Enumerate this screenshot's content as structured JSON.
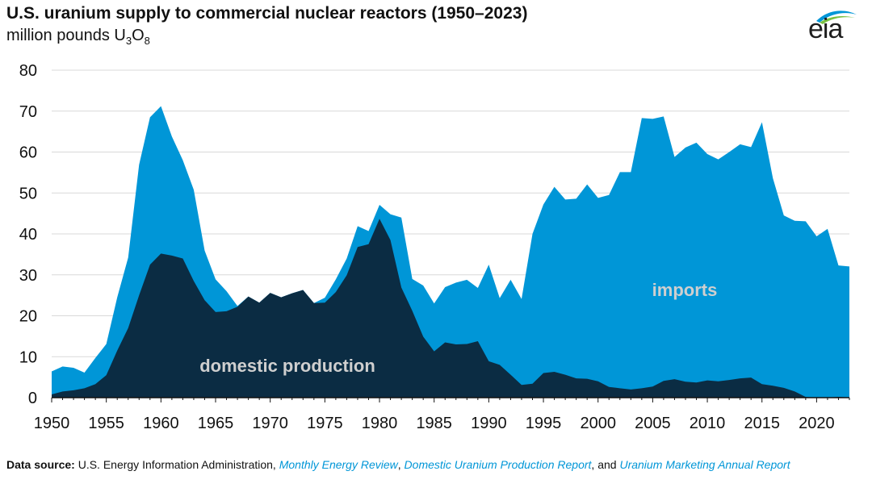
{
  "title": "U.S. uranium supply to commercial nuclear reactors (1950–2023)",
  "subtitle_prefix": "million pounds U",
  "subtitle_sub1": "3",
  "subtitle_mid": "O",
  "subtitle_sub2": "8",
  "logo": {
    "text": "eia",
    "icon": "eia-logo-icon"
  },
  "colors": {
    "domestic": "#0b2c43",
    "imports": "#0096d7",
    "grid": "#d9d9d9",
    "imports_label": "#cfcfcf",
    "domestic_label": "#cfcfcf"
  },
  "source": {
    "label": "Data source:",
    "text1": " U.S. Energy Information Administration, ",
    "link1": "Monthly Energy Review",
    "text2": ", ",
    "link2": "Domestic Uranium Production Report",
    "text3": ", and ",
    "link3": "Uranium Marketing Annual Report"
  },
  "chart_data": {
    "type": "area",
    "stacked": true,
    "title": "U.S. uranium supply to commercial nuclear reactors (1950–2023)",
    "ylabel": "million pounds U3O8",
    "xlim": [
      1950,
      2023
    ],
    "ylim": [
      0,
      80
    ],
    "yticks": [
      0,
      10,
      20,
      30,
      40,
      50,
      60,
      70,
      80
    ],
    "xticks": [
      1950,
      1955,
      1960,
      1965,
      1970,
      1975,
      1980,
      1985,
      1990,
      1995,
      2000,
      2005,
      2010,
      2015,
      2020
    ],
    "grid": true,
    "x": [
      1950,
      1951,
      1952,
      1953,
      1954,
      1955,
      1956,
      1957,
      1958,
      1959,
      1960,
      1961,
      1962,
      1963,
      1964,
      1965,
      1966,
      1967,
      1968,
      1969,
      1970,
      1971,
      1972,
      1973,
      1974,
      1975,
      1976,
      1977,
      1978,
      1979,
      1980,
      1981,
      1982,
      1983,
      1984,
      1985,
      1986,
      1987,
      1988,
      1989,
      1990,
      1991,
      1992,
      1993,
      1994,
      1995,
      1996,
      1997,
      1998,
      1999,
      2000,
      2001,
      2002,
      2003,
      2004,
      2005,
      2006,
      2007,
      2008,
      2009,
      2010,
      2011,
      2012,
      2013,
      2014,
      2015,
      2016,
      2017,
      2018,
      2019,
      2020,
      2021,
      2022,
      2023
    ],
    "series": [
      {
        "name": "domestic production",
        "values": [
          0.8,
          1.5,
          1.8,
          2.3,
          3.3,
          5.5,
          11.5,
          17,
          25,
          32.5,
          35.2,
          34.7,
          34,
          28.5,
          23.8,
          20.9,
          21.1,
          22.2,
          24.7,
          23.2,
          25.6,
          24.5,
          25.5,
          26.3,
          23.1,
          23.2,
          25.8,
          29.9,
          36.8,
          37.5,
          43.7,
          38.5,
          26.9,
          21.2,
          14.9,
          11.3,
          13.5,
          13,
          13.1,
          13.8,
          8.9,
          8,
          5.6,
          3.1,
          3.4,
          6.0,
          6.3,
          5.6,
          4.7,
          4.6,
          4,
          2.6,
          2.3,
          2.0,
          2.3,
          2.7,
          4.1,
          4.5,
          3.9,
          3.7,
          4.2,
          4.0,
          4.3,
          4.7,
          4.9,
          3.3,
          2.9,
          2.4,
          1.5,
          0.17,
          0.02,
          0.02,
          0.2,
          0.05
        ]
      },
      {
        "name": "imports",
        "values": [
          5.6,
          6.1,
          5.5,
          3.8,
          6.4,
          7.6,
          13,
          17.2,
          31.9,
          36,
          36,
          29.1,
          24,
          22.3,
          12.1,
          8,
          4.9,
          0.2,
          0,
          0,
          0,
          0,
          0,
          0,
          0,
          1.2,
          3.1,
          4.1,
          5.1,
          3.2,
          3.4,
          6.3,
          17.1,
          7.8,
          12.5,
          11.7,
          13.5,
          15.1,
          15.7,
          13,
          23.6,
          16.3,
          23.2,
          21,
          36.6,
          41.2,
          45.2,
          42.8,
          43.9,
          47.5,
          44.8,
          46.9,
          52.8,
          53.1,
          66,
          65.4,
          64.6,
          54.3,
          57.2,
          58.6,
          55.3,
          54.2,
          55.7,
          57.2,
          56.3,
          64,
          50.7,
          42.1,
          41.7,
          42.9,
          39.4,
          41.2,
          32.1,
          32
        ]
      }
    ]
  }
}
